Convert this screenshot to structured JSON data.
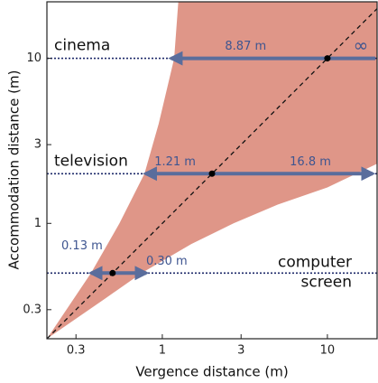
{
  "chart_data": {
    "type": "comfort-zone",
    "x_label": "Vergence distance (m)",
    "y_label": "Accommodation distance (m)",
    "log_x": true,
    "log_y": true,
    "xlim": [
      0.2,
      20
    ],
    "ylim": [
      0.2,
      22
    ],
    "xticks": [
      0.3,
      1,
      3,
      10
    ],
    "yticks": [
      0.3,
      1,
      3,
      10
    ],
    "zone": {
      "color": "#d98473",
      "upper": {
        "x": [
          0.2,
          0.37,
          0.55,
          0.78,
          0.95,
          1.18,
          1.25,
          20
        ],
        "y": [
          0.2,
          0.5,
          1,
          2,
          4,
          10,
          22,
          22
        ]
      },
      "lower": {
        "x": [
          20,
          10,
          5,
          2.7,
          1.5,
          0.75,
          0.45,
          0.2
        ],
        "y": [
          2.3,
          1.65,
          1.3,
          1,
          0.75,
          0.5,
          0.35,
          0.2
        ]
      }
    },
    "arrow_color": "#5a6d9c",
    "viewings": [
      {
        "label": [
          "cinema"
        ],
        "distance": 10,
        "near": {
          "value": 8.87,
          "label": "8.87 m"
        },
        "far": {
          "label": "∞"
        }
      },
      {
        "label": [
          "television"
        ],
        "distance": 2,
        "near": {
          "value": 1.21,
          "label": "1.21 m"
        },
        "far": {
          "value": 16.8,
          "label": "16.8 m"
        }
      },
      {
        "label": [
          "computer",
          "screen"
        ],
        "distance": 0.5,
        "near": {
          "value": 0.13,
          "label": "0.13 m"
        },
        "far": {
          "value": 0.3,
          "label": "0.30 m"
        }
      }
    ]
  }
}
